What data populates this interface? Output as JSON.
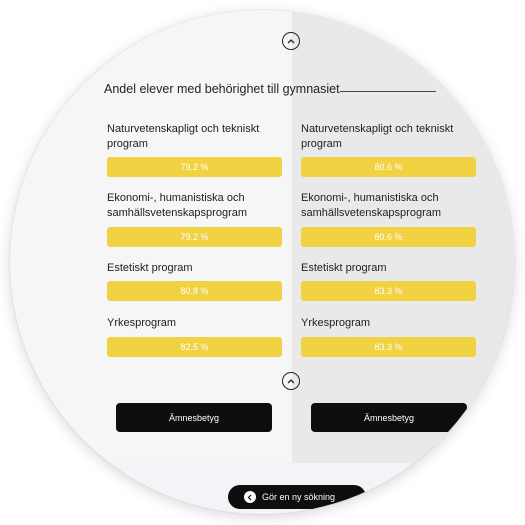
{
  "section_title": "Andel elever med behörighet till gymnasiet",
  "icons": {
    "collapse_top": "chevron-up-icon",
    "collapse_bottom": "chevron-up-icon",
    "search": "chevron-left-icon"
  },
  "colors": {
    "bar": "#f0d243",
    "button": "#0e0e0e",
    "right_column_bg": "#e9e9e9"
  },
  "columns": [
    {
      "rows": [
        {
          "label": "Naturvetenskapligt och tekniskt program",
          "value": "79.2 %"
        },
        {
          "label": "Ekonomi-, humanistiska och samhällsvetenskapsprogram",
          "value": "79.2 %"
        },
        {
          "label": "Estetiskt program",
          "value": "80.8 %"
        },
        {
          "label": "Yrkesprogram",
          "value": "82.5 %"
        }
      ],
      "button_label": "Ämnesbetyg"
    },
    {
      "rows": [
        {
          "label": "Naturvetenskapligt och tekniskt program",
          "value": "80.6 %"
        },
        {
          "label": "Ekonomi-, humanistiska och samhällsvetenskapsprogram",
          "value": "80.6 %"
        },
        {
          "label": "Estetiskt program",
          "value": "83.3 %"
        },
        {
          "label": "Yrkesprogram",
          "value": "83.3 %"
        }
      ],
      "button_label": "Ämnesbetyg"
    }
  ],
  "search_again_label": "Gör en ny sökning"
}
